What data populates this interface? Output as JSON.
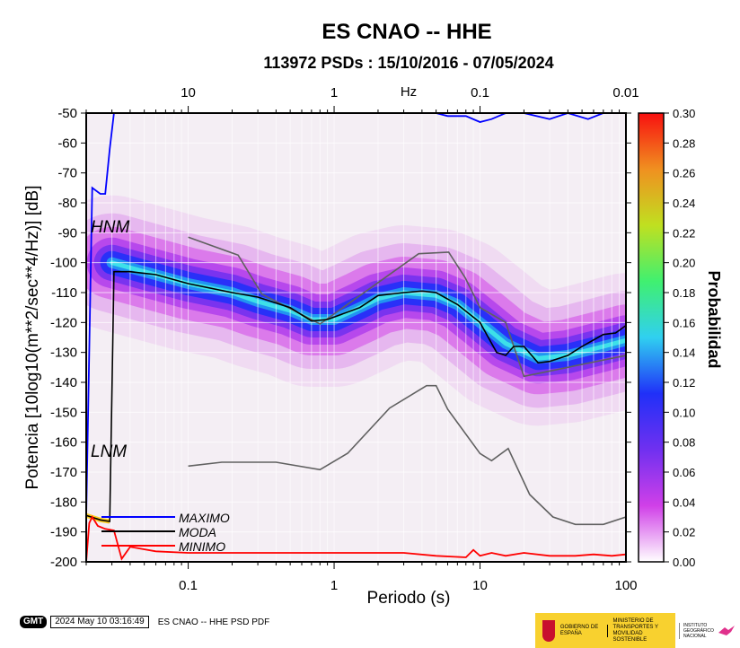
{
  "title": "ES CNAO -- HHE",
  "subtitle": "113972 PSDs : 15/10/2016 - 07/05/2024",
  "chart_data": {
    "type": "heatmap",
    "title": "ES CNAO -- HHE",
    "subtitle": "113972 PSDs : 15/10/2016 - 07/05/2024",
    "xlabel": "Periodo (s)",
    "ylabel": "Potencia [10log10(m**2/sec**4/Hz)] [dB]",
    "x_scale": "log",
    "xlim": [
      0.02,
      100
    ],
    "ylim": [
      -200,
      -50
    ],
    "x_ticks": [
      0.1,
      1,
      10,
      100
    ],
    "x_tick_labels": [
      "0.1",
      "1",
      "10",
      "100"
    ],
    "y_ticks": [
      -200,
      -190,
      -180,
      -170,
      -160,
      -150,
      -140,
      -130,
      -120,
      -110,
      -100,
      -90,
      -80,
      -70,
      -60,
      -50
    ],
    "y_tick_labels": [
      "-200",
      "-190",
      "-180",
      "-170",
      "-160",
      "-150",
      "-140",
      "-130",
      "-120",
      "-110",
      "-100",
      "-90",
      "-80",
      "-70",
      "-60",
      "-50"
    ],
    "top_axis": {
      "label": "Hz",
      "ticks": [
        10,
        1,
        0.1,
        0.01
      ],
      "tick_labels": [
        "10",
        "1",
        "0.1",
        "0.01"
      ]
    },
    "colorbar": {
      "label": "Probabilidad",
      "range": [
        0,
        0.3
      ],
      "ticks": [
        0.0,
        0.02,
        0.04,
        0.06,
        0.08,
        0.1,
        0.12,
        0.14,
        0.16,
        0.18,
        0.2,
        0.22,
        0.24,
        0.26,
        0.28,
        0.3
      ],
      "tick_labels": [
        "0.00",
        "0.02",
        "0.04",
        "0.06",
        "0.08",
        "0.10",
        "0.12",
        "0.14",
        "0.16",
        "0.18",
        "0.20",
        "0.22",
        "0.24",
        "0.26",
        "0.28",
        "0.30"
      ],
      "colors": [
        "#ffffff",
        "#d040e8",
        "#7030f0",
        "#2030f8",
        "#30d0f0",
        "#40f070",
        "#c0e020",
        "#f09020",
        "#f81010"
      ]
    },
    "grid": true,
    "models": [
      {
        "name": "HNM",
        "color": "#606060",
        "points": [
          [
            0.1,
            -91.5
          ],
          [
            0.22,
            -97.5
          ],
          [
            0.32,
            -110.5
          ],
          [
            0.8,
            -120.5
          ],
          [
            3.8,
            -97
          ],
          [
            6.1,
            -96.5
          ],
          [
            7.9,
            -105
          ],
          [
            10,
            -115
          ],
          [
            15,
            -120
          ],
          [
            20,
            -138
          ],
          [
            100,
            -131
          ]
        ]
      },
      {
        "name": "LNM",
        "color": "#606060",
        "points": [
          [
            0.1,
            -168
          ],
          [
            0.17,
            -166.7
          ],
          [
            0.4,
            -166.7
          ],
          [
            0.8,
            -169.2
          ],
          [
            1.24,
            -163.7
          ],
          [
            2.4,
            -148.6
          ],
          [
            4.3,
            -141.1
          ],
          [
            5.0,
            -141.1
          ],
          [
            6.0,
            -149
          ],
          [
            10,
            -163.8
          ],
          [
            12,
            -166.2
          ],
          [
            15.6,
            -162.1
          ],
          [
            21.9,
            -177.5
          ],
          [
            31.6,
            -185
          ],
          [
            45,
            -187.5
          ],
          [
            70,
            -187.5
          ],
          [
            100,
            -185
          ]
        ]
      }
    ],
    "series": [
      {
        "name": "MAXIMO",
        "color": "#0000ff",
        "points": [
          [
            0.02,
            -185
          ],
          [
            0.022,
            -75
          ],
          [
            0.025,
            -77
          ],
          [
            0.027,
            -77
          ],
          [
            0.029,
            -62
          ],
          [
            0.031,
            -50
          ],
          [
            0.2,
            -50
          ],
          [
            5,
            -50
          ],
          [
            6,
            -51
          ],
          [
            8,
            -51
          ],
          [
            10,
            -53
          ],
          [
            12,
            -52
          ],
          [
            15,
            -50
          ],
          [
            20,
            -50
          ],
          [
            30,
            -52
          ],
          [
            40,
            -50
          ],
          [
            55,
            -52
          ],
          [
            70,
            -50
          ],
          [
            100,
            -50
          ]
        ]
      },
      {
        "name": "MODA",
        "color": "#000000",
        "points": [
          [
            0.02,
            -184.5
          ],
          [
            0.025,
            -186
          ],
          [
            0.029,
            -186.5
          ],
          [
            0.031,
            -103
          ],
          [
            0.04,
            -103
          ],
          [
            0.06,
            -104
          ],
          [
            0.1,
            -107
          ],
          [
            0.2,
            -110
          ],
          [
            0.3,
            -111.5
          ],
          [
            0.5,
            -115
          ],
          [
            0.7,
            -119.5
          ],
          [
            0.9,
            -119
          ],
          [
            1.5,
            -115
          ],
          [
            2.0,
            -111
          ],
          [
            3,
            -110
          ],
          [
            4,
            -109.5
          ],
          [
            5,
            -110
          ],
          [
            7,
            -114
          ],
          [
            10,
            -120
          ],
          [
            13,
            -130
          ],
          [
            15,
            -131
          ],
          [
            17,
            -128
          ],
          [
            20,
            -128
          ],
          [
            25,
            -133.5
          ],
          [
            30,
            -133
          ],
          [
            40,
            -131
          ],
          [
            50,
            -128
          ],
          [
            70,
            -124
          ],
          [
            85,
            -123.5
          ],
          [
            100,
            -121
          ]
        ]
      },
      {
        "name": "MINIMO",
        "color": "#ff0000",
        "points": [
          [
            0.02,
            -200
          ],
          [
            0.021,
            -187
          ],
          [
            0.022,
            -185
          ],
          [
            0.024,
            -188
          ],
          [
            0.027,
            -189
          ],
          [
            0.031,
            -189.5
          ],
          [
            0.035,
            -199
          ],
          [
            0.04,
            -195
          ],
          [
            0.06,
            -196.5
          ],
          [
            0.1,
            -197
          ],
          [
            1,
            -197
          ],
          [
            3,
            -197
          ],
          [
            5,
            -198
          ],
          [
            8,
            -198.5
          ],
          [
            9,
            -196
          ],
          [
            10,
            -198
          ],
          [
            12,
            -197
          ],
          [
            15,
            -198
          ],
          [
            20,
            -197
          ],
          [
            30,
            -198
          ],
          [
            45,
            -198
          ],
          [
            60,
            -197.5
          ],
          [
            80,
            -198
          ],
          [
            100,
            -197.5
          ]
        ]
      }
    ],
    "density_ridge": [
      [
        0.03,
        -100
      ],
      [
        0.05,
        -103
      ],
      [
        0.1,
        -107
      ],
      [
        0.2,
        -110
      ],
      [
        0.3,
        -113
      ],
      [
        0.5,
        -116
      ],
      [
        0.7,
        -119
      ],
      [
        1.0,
        -119
      ],
      [
        1.5,
        -115
      ],
      [
        2.0,
        -112
      ],
      [
        3,
        -110
      ],
      [
        5,
        -111
      ],
      [
        7,
        -114
      ],
      [
        10,
        -120
      ],
      [
        15,
        -127
      ],
      [
        25,
        -132
      ],
      [
        40,
        -131
      ],
      [
        70,
        -128
      ],
      [
        100,
        -126
      ]
    ],
    "legend": [
      "MAXIMO",
      "MODA",
      "MINIMO"
    ]
  },
  "footer": {
    "software_logo": "GMT",
    "timestamp": "2024 May 10 03:16:49",
    "plot_title": "ES CNAO -- HHE PSD PDF",
    "gov_line1": "GOBIERNO DE ESPAÑA",
    "gov_line2": "MINISTERIO DE TRANSPORTES Y MOVILIDAD SOSTENIBLE",
    "institute": "INSTITUTO GEOGRÁFICO NACIONAL"
  }
}
